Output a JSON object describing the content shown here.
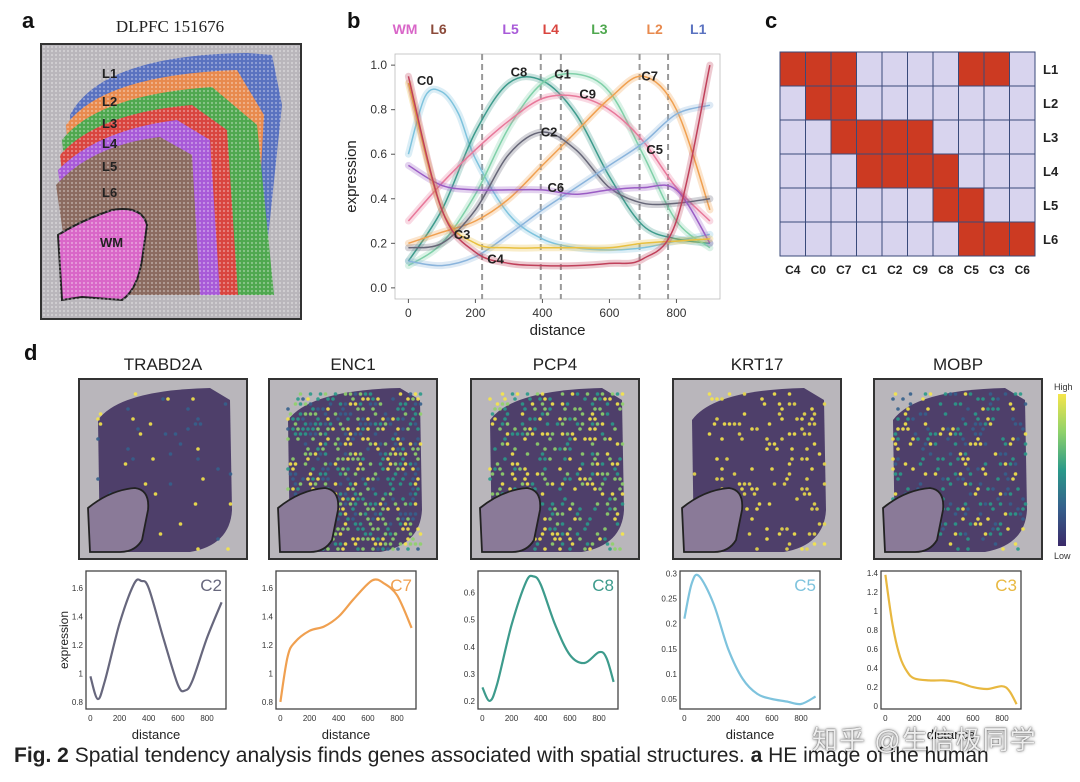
{
  "panels": {
    "a": {
      "label": "a",
      "title": "DLPFC 151676",
      "layers": [
        "L1",
        "L2",
        "L3",
        "L4",
        "L5",
        "L6",
        "WM"
      ],
      "layer_colors": {
        "L1": "#5a72c0",
        "L2": "#e88a4e",
        "L3": "#4fa84f",
        "L4": "#d9453f",
        "L5": "#a85ad8",
        "L6": "#8b6b60",
        "WM": "#d966c8"
      }
    },
    "b": {
      "label": "b"
    },
    "c": {
      "label": "c"
    },
    "d": {
      "label": "d"
    }
  },
  "chart_data": [
    {
      "id": "b",
      "type": "line",
      "xlabel": "distance",
      "ylabel": "expression",
      "xlim": [
        -40,
        930
      ],
      "ylim": [
        -0.05,
        1.05
      ],
      "xticks": [
        0,
        200,
        400,
        600,
        800
      ],
      "yticks": [
        0.0,
        0.2,
        0.4,
        0.6,
        0.8,
        1.0
      ],
      "boundaries": [
        220,
        395,
        455,
        690,
        775
      ],
      "top_labels": [
        {
          "text": "WM",
          "x": -10,
          "color": "#d966c8"
        },
        {
          "text": "L6",
          "x": 90,
          "color": "#8b4a3a"
        },
        {
          "text": "L5",
          "x": 305,
          "color": "#a85ad8"
        },
        {
          "text": "L4",
          "x": 425,
          "color": "#d9453f"
        },
        {
          "text": "L3",
          "x": 570,
          "color": "#4fa84f"
        },
        {
          "text": "L2",
          "x": 735,
          "color": "#e88a4e"
        },
        {
          "text": "L1",
          "x": 865,
          "color": "#5a72c0"
        }
      ],
      "series": [
        {
          "name": "C0",
          "color": "#7ec3dd",
          "label_at": [
            50,
            0.91
          ],
          "x": [
            0,
            50,
            100,
            150,
            200,
            300,
            400,
            500,
            600,
            700,
            800,
            900
          ],
          "y": [
            0.6,
            0.86,
            0.88,
            0.78,
            0.58,
            0.33,
            0.22,
            0.18,
            0.17,
            0.18,
            0.21,
            0.24
          ]
        },
        {
          "name": "C8",
          "color": "#3d9b8c",
          "label_at": [
            330,
            0.95
          ],
          "x": [
            0,
            100,
            200,
            300,
            400,
            500,
            600,
            700,
            800,
            900
          ],
          "y": [
            0.12,
            0.35,
            0.7,
            0.92,
            0.93,
            0.78,
            0.5,
            0.28,
            0.22,
            0.2
          ]
        },
        {
          "name": "C1",
          "color": "#7fd0a8",
          "label_at": [
            460,
            0.94
          ],
          "x": [
            0,
            100,
            200,
            300,
            400,
            500,
            600,
            700,
            800,
            900
          ],
          "y": [
            0.1,
            0.2,
            0.42,
            0.72,
            0.92,
            0.96,
            0.88,
            0.6,
            0.3,
            0.18
          ]
        },
        {
          "name": "C9",
          "color": "#e8789a",
          "label_at": [
            535,
            0.85
          ],
          "x": [
            0,
            100,
            200,
            300,
            400,
            500,
            600,
            700,
            800,
            900
          ],
          "y": [
            0.3,
            0.47,
            0.62,
            0.75,
            0.85,
            0.86,
            0.8,
            0.66,
            0.45,
            0.3
          ]
        },
        {
          "name": "C7",
          "color": "#f0a050",
          "label_at": [
            720,
            0.93
          ],
          "x": [
            0,
            100,
            200,
            300,
            400,
            500,
            600,
            700,
            800,
            900
          ],
          "y": [
            0.2,
            0.25,
            0.3,
            0.4,
            0.55,
            0.7,
            0.85,
            0.95,
            0.8,
            0.35
          ]
        },
        {
          "name": "C2",
          "color": "#666677",
          "label_at": [
            420,
            0.68
          ],
          "x": [
            0,
            100,
            200,
            300,
            400,
            500,
            600,
            700,
            800,
            900
          ],
          "y": [
            0.18,
            0.2,
            0.35,
            0.6,
            0.7,
            0.62,
            0.45,
            0.38,
            0.38,
            0.4
          ]
        },
        {
          "name": "C5",
          "color": "#8ab4dc",
          "label_at": [
            735,
            0.6
          ],
          "x": [
            0,
            100,
            200,
            300,
            400,
            500,
            600,
            700,
            800,
            900
          ],
          "y": [
            0.12,
            0.1,
            0.14,
            0.24,
            0.35,
            0.45,
            0.55,
            0.65,
            0.78,
            0.82
          ]
        },
        {
          "name": "C6",
          "color": "#9a5cc4",
          "label_at": [
            440,
            0.43
          ],
          "x": [
            0,
            100,
            200,
            300,
            400,
            500,
            600,
            700,
            800,
            900
          ],
          "y": [
            0.55,
            0.46,
            0.44,
            0.44,
            0.44,
            0.42,
            0.44,
            0.45,
            0.44,
            0.2
          ]
        },
        {
          "name": "C3",
          "color": "#e8c040",
          "label_at": [
            160,
            0.22
          ],
          "x": [
            0,
            100,
            200,
            300,
            400,
            500,
            600,
            700,
            800,
            900
          ],
          "y": [
            0.92,
            0.35,
            0.2,
            0.18,
            0.18,
            0.18,
            0.18,
            0.2,
            0.21,
            0.22
          ]
        },
        {
          "name": "C4",
          "color": "#c0405a",
          "label_at": [
            260,
            0.11
          ],
          "x": [
            0,
            100,
            200,
            300,
            400,
            500,
            600,
            700,
            800,
            900
          ],
          "y": [
            0.95,
            0.35,
            0.16,
            0.11,
            0.1,
            0.1,
            0.11,
            0.13,
            0.3,
            1.0
          ]
        }
      ]
    },
    {
      "id": "c",
      "type": "heatmap",
      "rows": [
        "L1",
        "L2",
        "L3",
        "L4",
        "L5",
        "L6"
      ],
      "cols": [
        "C4",
        "C0",
        "C7",
        "C1",
        "C2",
        "C9",
        "C8",
        "C5",
        "C3",
        "C6"
      ],
      "on_color": "#cc3a22",
      "off_color": "#d8d4ee",
      "values": [
        [
          1,
          1,
          1,
          0,
          0,
          0,
          0,
          1,
          1,
          0
        ],
        [
          0,
          1,
          1,
          0,
          0,
          0,
          0,
          0,
          0,
          0
        ],
        [
          0,
          0,
          1,
          1,
          1,
          1,
          0,
          0,
          0,
          0
        ],
        [
          0,
          0,
          0,
          1,
          1,
          1,
          1,
          0,
          0,
          0
        ],
        [
          0,
          0,
          0,
          0,
          0,
          0,
          1,
          1,
          0,
          0
        ],
        [
          0,
          0,
          0,
          0,
          0,
          0,
          0,
          1,
          1,
          1
        ]
      ]
    },
    {
      "id": "d",
      "type": "line",
      "colorbar": {
        "high": "High",
        "low": "Low"
      },
      "genes": [
        {
          "gene": "TRABD2A",
          "cluster": "C2",
          "color": "#67677d",
          "xlabel": "distance",
          "ylabel": "expression",
          "xticks": [
            0,
            200,
            400,
            600,
            800
          ],
          "yticks": [
            0.8,
            1.0,
            1.2,
            1.4,
            1.6
          ],
          "xlim": [
            -30,
            930
          ],
          "ylim": [
            0.75,
            1.72
          ],
          "x": [
            0,
            50,
            100,
            200,
            300,
            350,
            400,
            500,
            600,
            650,
            700,
            800,
            900
          ],
          "y": [
            0.98,
            0.82,
            0.95,
            1.35,
            1.63,
            1.65,
            1.6,
            1.25,
            0.92,
            0.88,
            0.95,
            1.25,
            1.5
          ]
        },
        {
          "gene": "ENC1",
          "cluster": "C7",
          "color": "#f0a050",
          "xlabel": "distance",
          "ylabel": "",
          "xticks": [
            0,
            200,
            400,
            600,
            800
          ],
          "yticks": [
            0.8,
            1.0,
            1.2,
            1.4,
            1.6
          ],
          "xlim": [
            -30,
            930
          ],
          "ylim": [
            0.75,
            1.72
          ],
          "x": [
            0,
            50,
            100,
            200,
            300,
            400,
            500,
            600,
            650,
            700,
            800,
            900
          ],
          "y": [
            0.8,
            1.12,
            1.22,
            1.3,
            1.33,
            1.4,
            1.52,
            1.63,
            1.66,
            1.64,
            1.55,
            1.32
          ]
        },
        {
          "gene": "PCP4",
          "cluster": "C8",
          "color": "#3d9b8c",
          "xlabel": "",
          "ylabel": "",
          "xticks": [
            0,
            200,
            400,
            600,
            800
          ],
          "yticks": [
            0.2,
            0.3,
            0.4,
            0.5,
            0.6
          ],
          "xlim": [
            -30,
            930
          ],
          "ylim": [
            0.17,
            0.68
          ],
          "x": [
            0,
            50,
            100,
            200,
            300,
            350,
            400,
            500,
            600,
            700,
            800,
            850,
            900
          ],
          "y": [
            0.25,
            0.2,
            0.26,
            0.48,
            0.64,
            0.66,
            0.63,
            0.48,
            0.37,
            0.34,
            0.38,
            0.36,
            0.27
          ]
        },
        {
          "gene": "KRT17",
          "cluster": "C5",
          "color": "#7ec3dd",
          "xlabel": "distance",
          "ylabel": "",
          "xticks": [
            0,
            200,
            400,
            600,
            800
          ],
          "yticks": [
            0.05,
            0.1,
            0.15,
            0.2,
            0.25,
            0.3
          ],
          "xlim": [
            -30,
            930
          ],
          "ylim": [
            0.03,
            0.305
          ],
          "x": [
            0,
            50,
            100,
            200,
            300,
            400,
            500,
            600,
            700,
            800,
            900
          ],
          "y": [
            0.21,
            0.28,
            0.295,
            0.24,
            0.15,
            0.09,
            0.06,
            0.05,
            0.045,
            0.04,
            0.055
          ]
        },
        {
          "gene": "MOBP",
          "cluster": "C3",
          "color": "#e8b840",
          "xlabel": "distance",
          "ylabel": "",
          "xticks": [
            0,
            200,
            400,
            600,
            800
          ],
          "yticks": [
            0.0,
            0.2,
            0.4,
            0.6,
            0.8,
            1.0,
            1.2,
            1.4
          ],
          "xlim": [
            -30,
            930
          ],
          "ylim": [
            -0.03,
            1.42
          ],
          "x": [
            0,
            50,
            100,
            150,
            200,
            300,
            400,
            500,
            600,
            700,
            800,
            850,
            900
          ],
          "y": [
            1.38,
            0.85,
            0.52,
            0.36,
            0.29,
            0.27,
            0.27,
            0.25,
            0.2,
            0.18,
            0.21,
            0.16,
            0.02
          ]
        }
      ]
    }
  ],
  "caption": {
    "bold": "Fig. 2",
    "text": "Spatial tendency analysis finds genes associated with spatial structures.",
    "bold2": "a",
    "rest": "HE image of the human"
  },
  "watermark": "知乎 @生信极同学"
}
